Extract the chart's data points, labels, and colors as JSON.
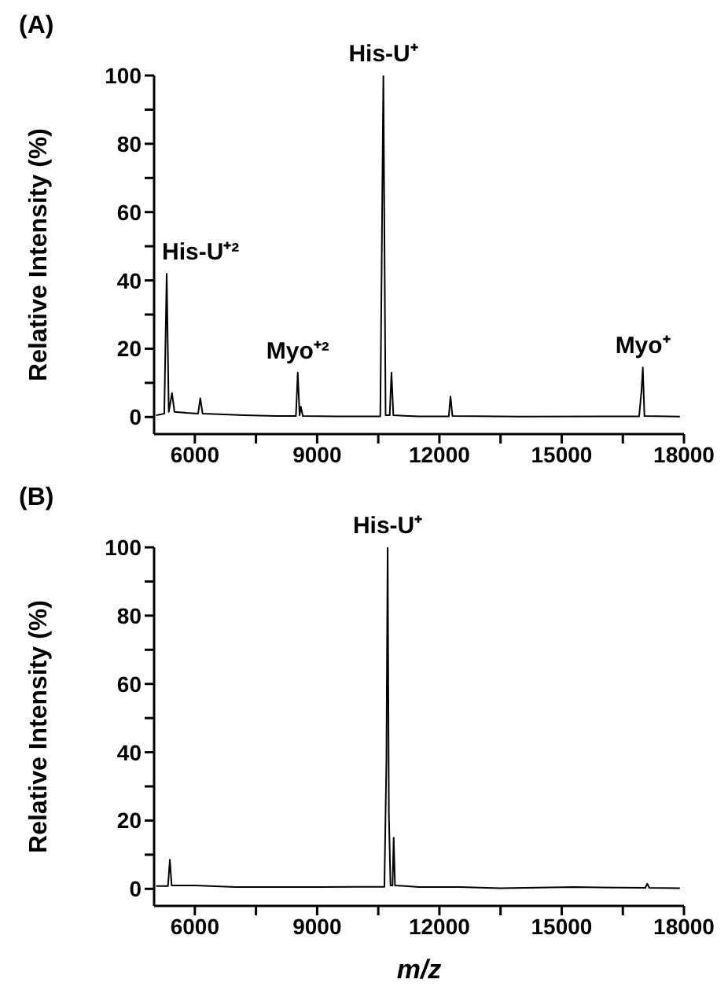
{
  "chart_data": [
    {
      "type": "line",
      "title": "(A)",
      "ylabel": "Relative Intensity (%)",
      "marker": "none",
      "line_style": "solid",
      "x": [
        5050,
        5250,
        5309,
        5360,
        5440,
        5500,
        5800,
        6080,
        6133,
        6190,
        6600,
        7200,
        8000,
        8480,
        8525,
        8570,
        8600,
        8650,
        9500,
        10550,
        10625,
        10680,
        10780,
        10824,
        10870,
        11500,
        12230,
        12272,
        12320,
        14000,
        16900,
        16960,
        16990,
        17030,
        17900
      ],
      "series": [
        {
          "color": "#000000",
          "values": [
            0.5,
            1,
            42,
            1.5,
            7,
            1.5,
            1.2,
            1,
            5.5,
            1,
            0.8,
            0.5,
            0.3,
            0.3,
            13,
            0.5,
            3,
            0.3,
            0.2,
            0.2,
            100,
            0.5,
            0.5,
            13,
            0.5,
            0.2,
            0.2,
            6,
            0.3,
            0.1,
            0.2,
            8,
            14.5,
            0.3,
            0.1
          ]
        }
      ],
      "xlim": [
        5000,
        18000
      ],
      "ylim": [
        -5,
        100
      ],
      "xticks": [
        6000,
        {
          "value": 7500,
          "label": null
        },
        9000,
        {
          "value": 10500,
          "label": null
        },
        12000,
        {
          "value": 13500,
          "label": null
        },
        15000,
        {
          "value": 16500,
          "label": null
        },
        18000
      ],
      "yticks": [
        0,
        {
          "value": 10,
          "label": null
        },
        20,
        {
          "value": 30,
          "label": null
        },
        40,
        {
          "value": 50,
          "label": null
        },
        60,
        {
          "value": 70,
          "label": null
        },
        80,
        {
          "value": 90,
          "label": null
        },
        100
      ],
      "annotations": [
        {
          "text": "His-U⁺²",
          "x": 5309,
          "y": 42
        },
        {
          "text": "Myo⁺²",
          "x": 8525,
          "y": 13
        },
        {
          "text": "His-U⁺",
          "x": 10625,
          "y": 100
        },
        {
          "text": "Myo⁺",
          "x": 16990,
          "y": 14.5
        }
      ]
    },
    {
      "type": "line",
      "title": "(B)",
      "xlabel": "m/z",
      "ylabel": "Relative Intensity (%)",
      "marker": "none",
      "line_style": "solid",
      "x": [
        5050,
        5340,
        5387,
        5430,
        6000,
        7000,
        8000,
        9000,
        10000,
        10650,
        10700,
        10730,
        10760,
        10800,
        10850,
        10878,
        10910,
        11500,
        12500,
        13500,
        15300,
        17050,
        17100,
        17150,
        17900
      ],
      "series": [
        {
          "color": "#000000",
          "values": [
            0.8,
            0.8,
            8.5,
            1,
            1,
            0.5,
            0.5,
            0.5,
            0.6,
            0.6,
            38,
            100,
            22,
            1,
            1,
            15,
            1,
            0.5,
            0.5,
            0.2,
            0.5,
            0.3,
            1.5,
            0.3,
            0.2
          ]
        }
      ],
      "xlim": [
        5000,
        18000
      ],
      "ylim": [
        -5,
        100
      ],
      "xticks": [
        6000,
        {
          "value": 7500,
          "label": null
        },
        9000,
        {
          "value": 10500,
          "label": null
        },
        12000,
        {
          "value": 13500,
          "label": null
        },
        15000,
        {
          "value": 16500,
          "label": null
        },
        18000
      ],
      "yticks": [
        0,
        {
          "value": 10,
          "label": null
        },
        20,
        {
          "value": 30,
          "label": null
        },
        40,
        {
          "value": 50,
          "label": null
        },
        60,
        {
          "value": 70,
          "label": null
        },
        80,
        {
          "value": 90,
          "label": null
        },
        100
      ],
      "annotations": [
        {
          "text": "His-U⁺",
          "x": 10730,
          "y": 100
        }
      ]
    }
  ]
}
